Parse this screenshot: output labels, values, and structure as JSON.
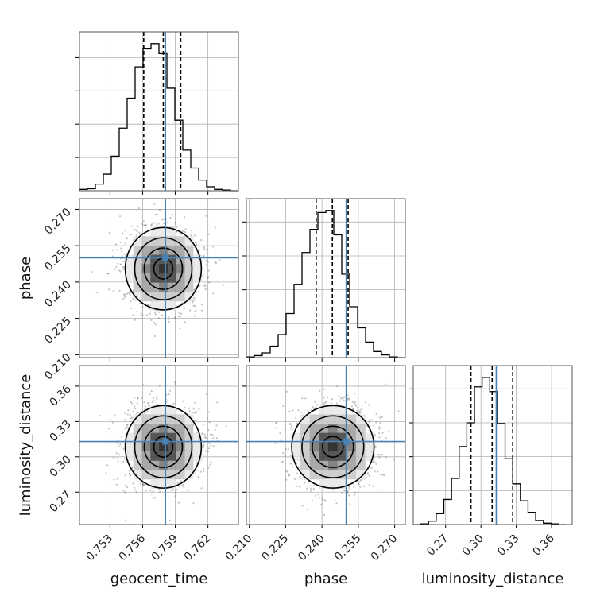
{
  "chart_data": {
    "type": "corner",
    "parameters": [
      {
        "name": "geocent_time",
        "label": "geocent_time",
        "range": [
          0.7502,
          0.7648
        ],
        "ticks": [
          0.753,
          0.756,
          0.759,
          0.762
        ],
        "tick_labels": [
          "0.753",
          "0.756",
          "0.759",
          "0.762"
        ],
        "truth": 0.7581,
        "quantiles": [
          0.7561,
          0.7579,
          0.7595
        ],
        "hist_edges": [
          0.7502,
          0.75093,
          0.75166,
          0.75239,
          0.75312,
          0.75385,
          0.75458,
          0.75531,
          0.75604,
          0.75677,
          0.7575,
          0.75823,
          0.75896,
          0.75969,
          0.76042,
          0.76115,
          0.76188,
          0.76261,
          0.76334,
          0.76407,
          0.7648
        ],
        "hist_counts": [
          2,
          3,
          10,
          25,
          52,
          94,
          139,
          186,
          213,
          221,
          206,
          154,
          106,
          61,
          34,
          16,
          6,
          2,
          1,
          0
        ]
      },
      {
        "name": "phase",
        "label": "phase",
        "range": [
          0.2088,
          0.2744
        ],
        "ticks": [
          0.21,
          0.225,
          0.24,
          0.255,
          0.27
        ],
        "tick_labels": [
          "0.210",
          "0.225",
          "0.240",
          "0.255",
          "0.270"
        ],
        "truth": 0.25,
        "quantiles": [
          0.2376,
          0.2443,
          0.2508
        ],
        "hist_edges": [
          0.2088,
          0.21208,
          0.21536,
          0.21864,
          0.22192,
          0.2252,
          0.22848,
          0.23176,
          0.23504,
          0.23832,
          0.2416,
          0.24488,
          0.24816,
          0.25144,
          0.25472,
          0.258,
          0.26128,
          0.26456,
          0.26784,
          0.27112,
          0.2744
        ],
        "hist_counts": [
          1,
          3,
          7,
          17,
          34,
          65,
          108,
          155,
          189,
          214,
          217,
          181,
          123,
          75,
          44,
          23,
          9,
          4,
          1,
          0
        ]
      },
      {
        "name": "luminosity_distance",
        "label": "luminosity_distance",
        "range": [
          0.2425,
          0.3775
        ],
        "ticks": [
          0.27,
          0.3,
          0.33,
          0.36
        ],
        "tick_labels": [
          "0.27",
          "0.30",
          "0.33",
          "0.36"
        ],
        "truth": 0.313,
        "quantiles": [
          0.2915,
          0.3095,
          0.327
        ],
        "hist_edges": [
          0.2425,
          0.249,
          0.2555,
          0.262,
          0.2685,
          0.275,
          0.2815,
          0.288,
          0.2945,
          0.301,
          0.3075,
          0.314,
          0.3205,
          0.327,
          0.3335,
          0.34,
          0.3465,
          0.353,
          0.3595,
          0.366,
          0.3725
        ],
        "hist_counts": [
          0,
          1,
          5,
          16,
          37,
          68,
          115,
          150,
          203,
          217,
          196,
          149,
          97,
          60,
          35,
          18,
          6,
          2,
          1,
          0
        ]
      }
    ],
    "pairs": [
      {
        "x": "geocent_time",
        "y": "phase",
        "center": [
          0.7579,
          0.2455
        ],
        "sigma": [
          0.00175,
          0.0085
        ],
        "truth": [
          0.7581,
          0.25
        ]
      },
      {
        "x": "geocent_time",
        "y": "luminosity_distance",
        "center": [
          0.7579,
          0.3085
        ],
        "sigma": [
          0.00175,
          0.0175
        ],
        "truth": [
          0.7581,
          0.313
        ]
      },
      {
        "x": "phase",
        "y": "luminosity_distance",
        "center": [
          0.2445,
          0.3085
        ],
        "sigma": [
          0.0085,
          0.0175
        ],
        "truth": [
          0.25,
          0.313
        ]
      }
    ],
    "contour_levels_sigma": [
      0.5,
      1.0,
      1.5,
      2.0
    ],
    "grid": true,
    "colors": {
      "truth": "#4682b4",
      "histogram": "#000000",
      "contours": "#000000",
      "scatter": "#555555",
      "grid": "#b0b0b0"
    }
  }
}
